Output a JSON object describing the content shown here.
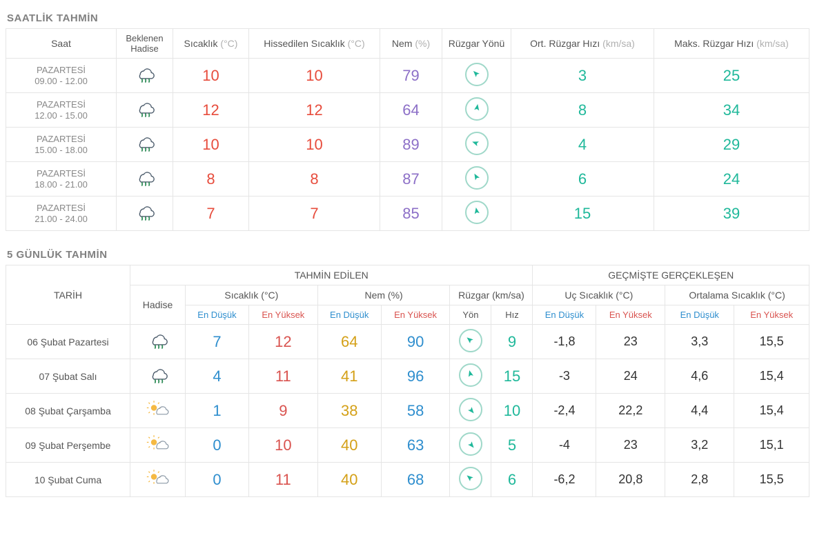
{
  "colors": {
    "temp": "#e74c3c",
    "humidity": "#8c6fc7",
    "wind": "#1fb89a",
    "tempLow": "#2e8ece",
    "tempHigh": "#d9534f",
    "humLow": "#d4a017",
    "humHigh": "#2e8ece",
    "unit": "#b0b0b0",
    "border": "#e5e5e5",
    "windRing": "#9fd8c9",
    "arrowFill": "#1fb89a",
    "cloudStroke": "#4a5a6a",
    "rainDrop": "#2e8b57",
    "sunFill": "#f5b942"
  },
  "icons": {
    "cloud-rain": "cloud-rain-icon",
    "sun-cloud": "sun-cloud-icon"
  },
  "hourly": {
    "title": "SAATLİK TAHMİN",
    "headers": {
      "saat": "Saat",
      "hadise": "Beklenen Hadise",
      "sicaklik": "Sıcaklık",
      "sicaklik_unit": "(°C)",
      "hissedilen": "Hissedilen Sıcaklık",
      "hissedilen_unit": "(°C)",
      "nem": "Nem",
      "nem_unit": "(%)",
      "ruzgar_yonu": "Rüzgar Yönü",
      "ort_ruzgar": "Ort. Rüzgar Hızı",
      "ort_ruzgar_unit": "(km/sa)",
      "maks_ruzgar": "Maks. Rüzgar Hızı",
      "maks_ruzgar_unit": "(km/sa)"
    },
    "rows": [
      {
        "day": "PAZARTESİ",
        "range": "09.00 - 12.00",
        "icon": "cloud-rain",
        "temp": "10",
        "feels": "10",
        "hum": "79",
        "windDeg": -45,
        "avgWind": "3",
        "maxWind": "25"
      },
      {
        "day": "PAZARTESİ",
        "range": "12.00 - 15.00",
        "icon": "cloud-rain",
        "temp": "12",
        "feels": "12",
        "hum": "64",
        "windDeg": 10,
        "avgWind": "8",
        "maxWind": "34"
      },
      {
        "day": "PAZARTESİ",
        "range": "15.00 - 18.00",
        "icon": "cloud-rain",
        "temp": "10",
        "feels": "10",
        "hum": "89",
        "windDeg": -70,
        "avgWind": "4",
        "maxWind": "29"
      },
      {
        "day": "PAZARTESİ",
        "range": "18.00 - 21.00",
        "icon": "cloud-rain",
        "temp": "8",
        "feels": "8",
        "hum": "87",
        "windDeg": -30,
        "avgWind": "6",
        "maxWind": "24"
      },
      {
        "day": "PAZARTESİ",
        "range": "21.00 - 24.00",
        "icon": "cloud-rain",
        "temp": "7",
        "feels": "7",
        "hum": "85",
        "windDeg": -10,
        "avgWind": "15",
        "maxWind": "39"
      }
    ]
  },
  "daily": {
    "title": "5 GÜNLÜK TAHMİN",
    "headers": {
      "tarih": "TARİH",
      "tahmin_edilen": "TAHMİN EDİLEN",
      "gecmis": "GEÇMİŞTE GERÇEKLEŞEN",
      "hadise": "Hadise",
      "sicaklik": "Sıcaklık (°C)",
      "nem": "Nem (%)",
      "ruzgar": "Rüzgar (km/sa)",
      "uc_sicaklik": "Uç Sıcaklık (°C)",
      "ort_sicaklik": "Ortalama Sıcaklık (°C)",
      "en_dusuk": "En Düşük",
      "en_yuksek": "En Yüksek",
      "yon": "Yön",
      "hiz": "Hız"
    },
    "rows": [
      {
        "date": "06 Şubat Pazartesi",
        "icon": "cloud-rain",
        "tLow": "7",
        "tHigh": "12",
        "hLow": "64",
        "hHigh": "90",
        "windDeg": -50,
        "wSpd": "9",
        "exLow": "-1,8",
        "exHigh": "23",
        "avLow": "3,3",
        "avHigh": "15,5"
      },
      {
        "date": "07 Şubat Salı",
        "icon": "cloud-rain",
        "tLow": "4",
        "tHigh": "11",
        "hLow": "41",
        "hHigh": "96",
        "windDeg": -15,
        "wSpd": "15",
        "exLow": "-3",
        "exHigh": "24",
        "avLow": "4,6",
        "avHigh": "15,4"
      },
      {
        "date": "08 Şubat Çarşamba",
        "icon": "sun-cloud",
        "tLow": "1",
        "tHigh": "9",
        "hLow": "38",
        "hHigh": "58",
        "windDeg": 140,
        "wSpd": "10",
        "exLow": "-2,4",
        "exHigh": "22,2",
        "avLow": "4,4",
        "avHigh": "15,4"
      },
      {
        "date": "09 Şubat Perşembe",
        "icon": "sun-cloud",
        "tLow": "0",
        "tHigh": "10",
        "hLow": "40",
        "hHigh": "63",
        "windDeg": 140,
        "wSpd": "5",
        "exLow": "-4",
        "exHigh": "23",
        "avLow": "3,2",
        "avHigh": "15,1"
      },
      {
        "date": "10 Şubat Cuma",
        "icon": "sun-cloud",
        "tLow": "0",
        "tHigh": "11",
        "hLow": "40",
        "hHigh": "68",
        "windDeg": -50,
        "wSpd": "6",
        "exLow": "-6,2",
        "exHigh": "20,8",
        "avLow": "2,8",
        "avHigh": "15,5"
      }
    ]
  }
}
